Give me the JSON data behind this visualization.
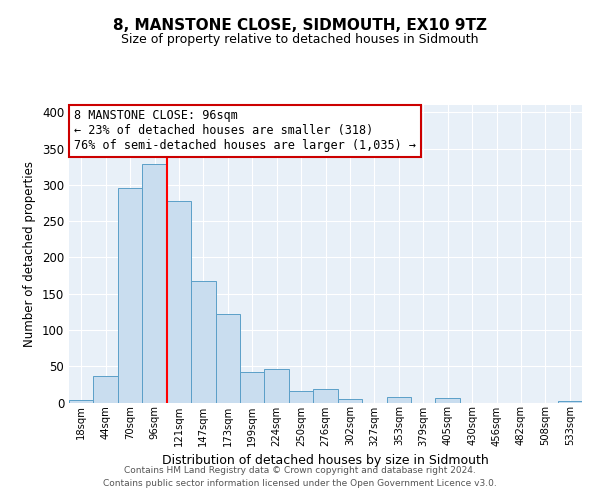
{
  "title": "8, MANSTONE CLOSE, SIDMOUTH, EX10 9TZ",
  "subtitle": "Size of property relative to detached houses in Sidmouth",
  "xlabel": "Distribution of detached houses by size in Sidmouth",
  "ylabel": "Number of detached properties",
  "bin_labels": [
    "18sqm",
    "44sqm",
    "70sqm",
    "96sqm",
    "121sqm",
    "147sqm",
    "173sqm",
    "199sqm",
    "224sqm",
    "250sqm",
    "276sqm",
    "302sqm",
    "327sqm",
    "353sqm",
    "379sqm",
    "405sqm",
    "430sqm",
    "456sqm",
    "482sqm",
    "508sqm",
    "533sqm"
  ],
  "bar_values": [
    3,
    37,
    296,
    329,
    278,
    168,
    122,
    42,
    46,
    16,
    18,
    5,
    0,
    7,
    0,
    6,
    0,
    0,
    0,
    0,
    2
  ],
  "bar_color": "#c9ddef",
  "bar_edge_color": "#5b9fc8",
  "vline_x": 3,
  "vline_color": "red",
  "annotation_text": "8 MANSTONE CLOSE: 96sqm\n← 23% of detached houses are smaller (318)\n76% of semi-detached houses are larger (1,035) →",
  "annotation_box_color": "white",
  "annotation_box_edge_color": "#cc0000",
  "ylim": [
    0,
    410
  ],
  "yticks": [
    0,
    50,
    100,
    150,
    200,
    250,
    300,
    350,
    400
  ],
  "bg_color": "#e8f0f8",
  "footer_line1": "Contains HM Land Registry data © Crown copyright and database right 2024.",
  "footer_line2": "Contains public sector information licensed under the Open Government Licence v3.0."
}
